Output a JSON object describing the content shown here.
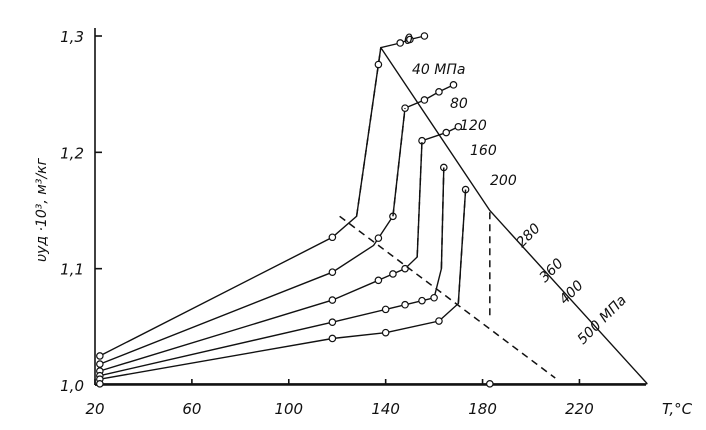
{
  "chart_data": {
    "type": "line",
    "title": "",
    "xlabel": "T,°C",
    "ylabel": "υуд ·10³, м³/кг",
    "xlim": [
      20,
      245
    ],
    "ylim": [
      1.0,
      1.3
    ],
    "x_ticks": [
      20,
      60,
      100,
      140,
      180,
      220
    ],
    "y_ticks": [
      1.0,
      1.1,
      1.2,
      1.3
    ],
    "y_tick_labels": [
      "1,0",
      "1,1",
      "1,2",
      "1,3"
    ],
    "series": [
      {
        "name": "0",
        "points": [
          [
            22,
            1.025
          ],
          [
            118,
            1.127
          ],
          [
            128,
            1.145
          ],
          [
            138,
            1.29
          ],
          [
            146,
            1.294
          ],
          [
            150,
            1.297
          ],
          [
            156,
            1.3
          ]
        ],
        "markers": [
          22,
          118,
          137,
          146,
          150,
          156
        ]
      },
      {
        "name": "40 МПа",
        "points": [
          [
            22,
            1.018
          ],
          [
            118,
            1.097
          ],
          [
            135,
            1.12
          ],
          [
            143,
            1.145
          ],
          [
            148,
            1.238
          ],
          [
            156,
            1.245
          ],
          [
            162,
            1.252
          ],
          [
            168,
            1.258
          ]
        ],
        "markers": [
          22,
          118,
          137,
          143,
          148,
          156,
          162,
          168
        ]
      },
      {
        "name": "80",
        "points": [
          [
            22,
            1.012
          ],
          [
            118,
            1.073
          ],
          [
            137,
            1.09
          ],
          [
            148,
            1.1
          ],
          [
            153,
            1.11
          ],
          [
            155,
            1.21
          ],
          [
            165,
            1.217
          ],
          [
            170,
            1.222
          ]
        ],
        "markers": [
          22,
          118,
          137,
          143,
          148,
          155,
          165,
          170
        ]
      },
      {
        "name": "120",
        "points": [
          [
            22,
            1.008
          ],
          [
            118,
            1.054
          ],
          [
            140,
            1.065
          ],
          [
            160,
            1.075
          ],
          [
            163,
            1.1
          ],
          [
            164,
            1.187
          ]
        ],
        "markers": [
          22,
          118,
          140,
          148,
          155,
          160,
          164
        ]
      },
      {
        "name": "160",
        "points": [
          [
            22,
            1.005
          ],
          [
            118,
            1.04
          ],
          [
            140,
            1.045
          ],
          [
            162,
            1.055
          ],
          [
            170,
            1.07
          ],
          [
            173,
            1.168
          ]
        ],
        "markers": [
          22,
          118,
          140,
          162,
          173
        ]
      },
      {
        "name": "200",
        "points": [
          [
            22,
            1.001
          ],
          [
            248,
            1.001
          ]
        ],
        "markers": [
          22,
          183
        ]
      }
    ],
    "phase_boundary": {
      "style": "solid",
      "points": [
        [
          138,
          1.29
        ],
        [
          183,
          1.15
        ],
        [
          248,
          1.001
        ]
      ]
    },
    "pressure_scale": [
      "280",
      "360",
      "400",
      "500 МПа"
    ],
    "transition_dashed_line": {
      "points": [
        [
          121,
          1.145
        ],
        [
          210,
          1.006
        ]
      ]
    }
  }
}
